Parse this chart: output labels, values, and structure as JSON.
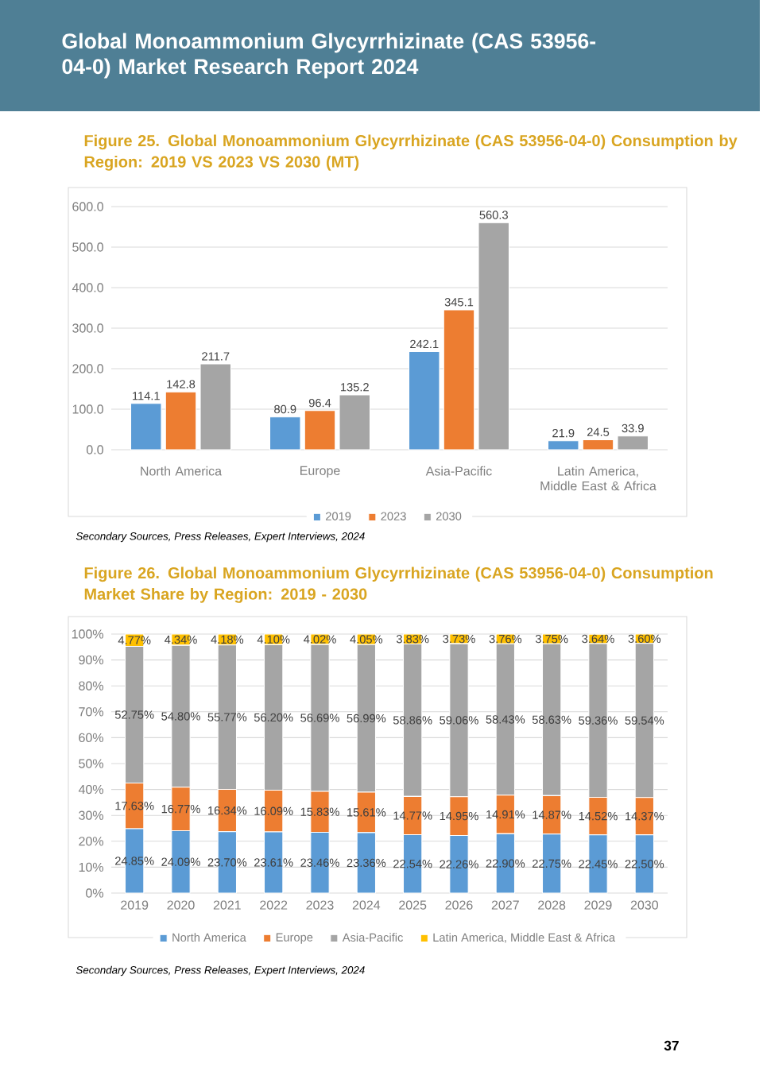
{
  "chart_data": [
    {
      "type": "bar",
      "title": "Figure 25.   Global Monoammonium Glycyrrhizinate (CAS 53956-04-0) Consumption by Region: 2019 VS 2023 VS 2030 (MT)",
      "annotations": [
        "Global Monoammonium Glycyrrhizinate (CAS 53956-04-0) Market Research Report 2024",
        "Secondary Sources, Press Releases, Expert Interviews, 2024"
      ],
      "categories": [
        "North America",
        "Europe",
        "Asia-Pacific",
        "Latin America, Middle East & Africa"
      ],
      "series": [
        {
          "name": "2019",
          "color": "#5b9bd5",
          "values": [
            114.1,
            80.9,
            242.1,
            21.9
          ],
          "value_labels": [
            "114.1",
            "80.9",
            "242.1",
            "21.9"
          ]
        },
        {
          "name": "2023",
          "color": "#ed7d31",
          "values": [
            142.8,
            96.4,
            345.1,
            24.5
          ],
          "value_labels": [
            "142.8",
            "96.4",
            "345.1",
            "24.5"
          ]
        },
        {
          "name": "2030",
          "color": "#a5a5a5",
          "values": [
            211.7,
            135.2,
            560.3,
            33.9
          ],
          "value_labels": [
            "211.7",
            "135.2",
            "560.3",
            "33.9"
          ]
        }
      ],
      "ylim": [
        0,
        600
      ],
      "yticks": [
        {
          "value": 0,
          "label": "0.0"
        },
        {
          "value": 100,
          "label": "100.0"
        },
        {
          "value": 200,
          "label": "200.0"
        },
        {
          "value": 300,
          "label": "300.0"
        },
        {
          "value": 400,
          "label": "400.0"
        },
        {
          "value": 500,
          "label": "500.0"
        },
        {
          "value": 600,
          "label": "600.0"
        }
      ],
      "grid": "y",
      "legend": "bottom"
    },
    {
      "type": "bar",
      "stacked": true,
      "title": "Figure 26.   Global Monoammonium Glycyrrhizinate (CAS 53956-04-0) Consumption Market Share by Region: 2019 - 2030",
      "annotations": [
        "Secondary Sources, Press Releases, Expert Interviews, 2024",
        "37"
      ],
      "categories": [
        "2019",
        "2020",
        "2021",
        "2022",
        "2023",
        "2024",
        "2025",
        "2026",
        "2027",
        "2028",
        "2029",
        "2030"
      ],
      "series": [
        {
          "name": "North America",
          "color": "#5b9bd5",
          "values": [
            24.85,
            24.09,
            23.7,
            23.61,
            23.46,
            23.36,
            22.54,
            22.26,
            22.9,
            22.75,
            22.45,
            22.5
          ],
          "value_labels": [
            "24.85%",
            "24.09%",
            "23.70%",
            "23.61%",
            "23.46%",
            "23.36%",
            "22.54%",
            "22.26%",
            "22.90%",
            "22.75%",
            "22.45%",
            "22.50%"
          ]
        },
        {
          "name": "Europe",
          "color": "#ed7d31",
          "values": [
            17.63,
            16.77,
            16.34,
            16.09,
            15.83,
            15.61,
            14.77,
            14.95,
            14.91,
            14.87,
            14.52,
            14.37
          ],
          "value_labels": [
            "17.63%",
            "16.77%",
            "16.34%",
            "16.09%",
            "15.83%",
            "15.61%",
            "14.77%",
            "14.95%",
            "14.91%",
            "14.87%",
            "14.52%",
            "14.37%"
          ]
        },
        {
          "name": "Asia-Pacific",
          "color": "#a5a5a5",
          "values": [
            52.75,
            54.8,
            55.77,
            56.2,
            56.69,
            56.99,
            58.86,
            59.06,
            58.43,
            58.63,
            59.36,
            59.54
          ],
          "value_labels": [
            "52.75%",
            "54.80%",
            "55.77%",
            "56.20%",
            "56.69%",
            "56.99%",
            "58.86%",
            "59.06%",
            "58.43%",
            "58.63%",
            "59.36%",
            "59.54%"
          ]
        },
        {
          "name": "Latin America, Middle East & Africa",
          "color": "#ffc000",
          "values": [
            4.77,
            4.34,
            4.18,
            4.1,
            4.02,
            4.05,
            3.83,
            3.73,
            3.76,
            3.75,
            3.64,
            3.6
          ],
          "value_labels": [
            "4.77%",
            "4.34%",
            "4.18%",
            "4.10%",
            "4.02%",
            "4.05%",
            "3.83%",
            "3.73%",
            "3.76%",
            "3.75%",
            "3.64%",
            "3.60%"
          ]
        }
      ],
      "ylim": [
        0,
        100
      ],
      "yticks": [
        {
          "value": 0,
          "label": "0%"
        },
        {
          "value": 10,
          "label": "10%"
        },
        {
          "value": 20,
          "label": "20%"
        },
        {
          "value": 30,
          "label": "30%"
        },
        {
          "value": 40,
          "label": "40%"
        },
        {
          "value": 50,
          "label": "50%"
        },
        {
          "value": 60,
          "label": "60%"
        },
        {
          "value": 70,
          "label": "70%"
        },
        {
          "value": 80,
          "label": "80%"
        },
        {
          "value": 90,
          "label": "90%"
        },
        {
          "value": 100,
          "label": "100%"
        }
      ],
      "grid": "y",
      "legend": "bottom"
    }
  ]
}
